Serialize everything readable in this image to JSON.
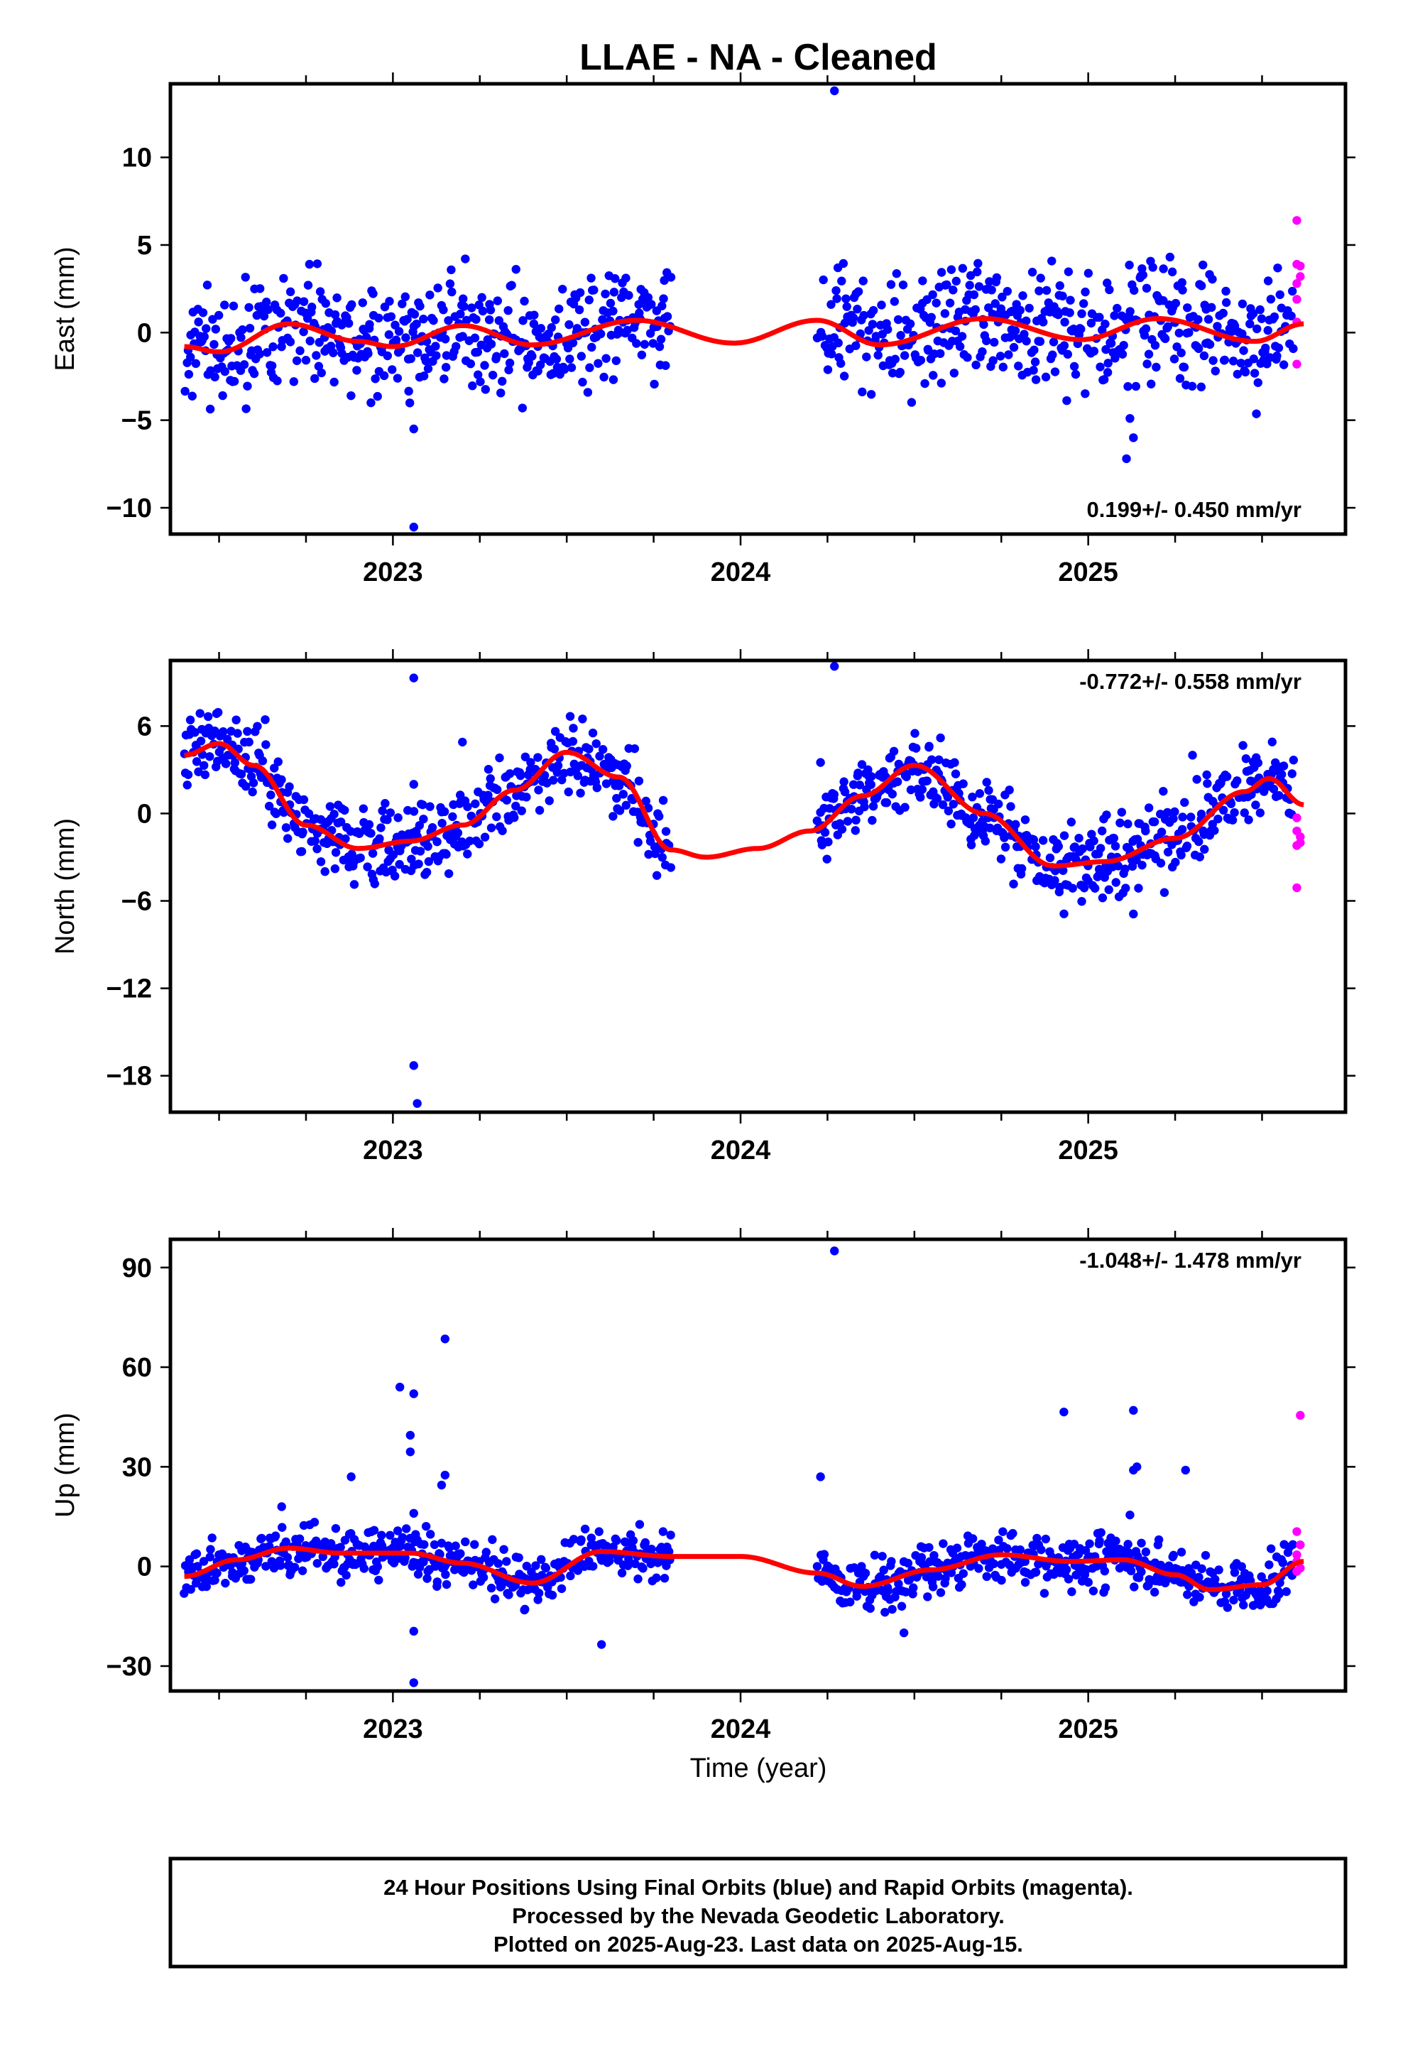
{
  "title": "LLAE  - NA - Cleaned",
  "colors": {
    "final": "#0000ff",
    "rapid": "#ff00ff",
    "fit": "#ff0000",
    "frame": "#000000"
  },
  "xlabel": "Time (year)",
  "footer": [
    "24 Hour Positions Using Final Orbits (blue) and Rapid Orbits (magenta).",
    "Processed by the Nevada Geodetic Laboratory.",
    "Plotted on 2025-Aug-23. Last data on 2025-Aug-15."
  ],
  "chart_data": [
    {
      "type": "scatter",
      "ylabel": "East (mm)",
      "rate_text": "0.199+/- 0.450 mm/yr",
      "rate_position": "bottom-right",
      "xlim": [
        2022.36,
        2025.74
      ],
      "ylim": [
        -11.5,
        14.2
      ],
      "yticks": [
        10,
        5,
        0,
        -5,
        -10
      ],
      "ytick_labels": [
        "10",
        "5",
        "0",
        "−5",
        "−10"
      ],
      "xticks": [
        2023,
        2024,
        2025
      ],
      "xtick_labels": [
        "2023",
        "2024",
        "2025"
      ],
      "gap": [
        2023.8,
        2024.22
      ],
      "fit": {
        "x": [
          2022.4,
          2022.5,
          2022.7,
          2022.9,
          2023.0,
          2023.2,
          2023.4,
          2023.7,
          2023.98,
          2024.22,
          2024.4,
          2024.7,
          2024.98,
          2025.2,
          2025.48,
          2025.62
        ],
        "y": [
          -0.8,
          -1.1,
          0.5,
          -0.5,
          -0.8,
          0.4,
          -0.7,
          0.7,
          -0.6,
          0.7,
          -0.7,
          0.8,
          -0.4,
          0.8,
          -0.5,
          0.5
        ]
      },
      "final_noise": 1.6,
      "outliers": [
        {
          "x": 2023.06,
          "y": -11.1
        },
        {
          "x": 2023.06,
          "y": -5.5
        },
        {
          "x": 2024.27,
          "y": 13.8
        },
        {
          "x": 2025.11,
          "y": -7.2
        },
        {
          "x": 2025.13,
          "y": -6.0
        },
        {
          "x": 2025.12,
          "y": -4.9
        },
        {
          "x": 2024.28,
          "y": 3.7
        },
        {
          "x": 2022.76,
          "y": 3.9
        }
      ],
      "rapid": [
        {
          "x": 2025.6,
          "y": 6.4
        },
        {
          "x": 2025.6,
          "y": 3.9
        },
        {
          "x": 2025.61,
          "y": 3.2
        },
        {
          "x": 2025.6,
          "y": 2.8
        },
        {
          "x": 2025.6,
          "y": 1.9
        },
        {
          "x": 2025.6,
          "y": 0.6
        },
        {
          "x": 2025.61,
          "y": 3.8
        },
        {
          "x": 2025.6,
          "y": -1.8
        }
      ]
    },
    {
      "type": "scatter",
      "ylabel": "North (mm)",
      "rate_text": "-0.772+/- 0.558 mm/yr",
      "rate_position": "top-right",
      "xlim": [
        2022.36,
        2025.74
      ],
      "ylim": [
        -20.5,
        10.5
      ],
      "yticks": [
        6,
        0,
        -6,
        -12,
        -18
      ],
      "ytick_labels": [
        "6",
        "0",
        "−6",
        "−12",
        "−18"
      ],
      "xticks": [
        2023,
        2024,
        2025
      ],
      "xtick_labels": [
        "2023",
        "2024",
        "2025"
      ],
      "gap": [
        2023.8,
        2024.22
      ],
      "fit": {
        "x": [
          2022.4,
          2022.5,
          2022.6,
          2022.75,
          2022.9,
          2023.05,
          2023.2,
          2023.35,
          2023.5,
          2023.65,
          2023.8,
          2023.9,
          2024.05,
          2024.2,
          2024.35,
          2024.5,
          2024.7,
          2024.9,
          2025.05,
          2025.25,
          2025.45,
          2025.52,
          2025.62
        ],
        "y": [
          4.0,
          4.8,
          3.3,
          -0.8,
          -2.4,
          -1.9,
          -0.8,
          1.6,
          4.2,
          2.5,
          -2.5,
          -3.0,
          -2.4,
          -1.2,
          1.2,
          3.3,
          0.0,
          -3.6,
          -3.3,
          -1.7,
          1.5,
          2.4,
          0.6
        ]
      },
      "final_noise": 1.3,
      "outliers": [
        {
          "x": 2023.06,
          "y": 9.3
        },
        {
          "x": 2023.06,
          "y": -17.3
        },
        {
          "x": 2023.07,
          "y": -19.9
        },
        {
          "x": 2024.27,
          "y": 10.1
        },
        {
          "x": 2023.06,
          "y": 2.0
        },
        {
          "x": 2025.13,
          "y": -6.9
        },
        {
          "x": 2025.3,
          "y": 4.0
        },
        {
          "x": 2023.2,
          "y": 4.9
        },
        {
          "x": 2024.23,
          "y": 3.5
        }
      ],
      "rapid": [
        {
          "x": 2025.6,
          "y": -0.3
        },
        {
          "x": 2025.6,
          "y": -1.2
        },
        {
          "x": 2025.61,
          "y": -1.6
        },
        {
          "x": 2025.6,
          "y": -2.2
        },
        {
          "x": 2025.61,
          "y": -2.0
        },
        {
          "x": 2025.6,
          "y": -5.1
        }
      ]
    },
    {
      "type": "scatter",
      "ylabel": "Up (mm)",
      "rate_text": "-1.048+/- 1.478 mm/yr",
      "rate_position": "top-right",
      "xlim": [
        2022.36,
        2025.74
      ],
      "ylim": [
        -37.5,
        98.5
      ],
      "yticks": [
        90,
        60,
        30,
        0,
        -30
      ],
      "ytick_labels": [
        "90",
        "60",
        "30",
        "0",
        "−30"
      ],
      "xticks": [
        2023,
        2024,
        2025
      ],
      "xtick_labels": [
        "2023",
        "2024",
        "2025"
      ],
      "gap": [
        2023.8,
        2024.22
      ],
      "fit": {
        "x": [
          2022.4,
          2022.55,
          2022.7,
          2022.85,
          2023.05,
          2023.2,
          2023.4,
          2023.6,
          2023.8,
          2024.0,
          2024.22,
          2024.35,
          2024.55,
          2024.75,
          2024.95,
          2025.1,
          2025.25,
          2025.35,
          2025.5,
          2025.62
        ],
        "y": [
          -3.0,
          2.0,
          5.5,
          4.0,
          4.0,
          1.0,
          -5.0,
          4.5,
          3.0,
          3.0,
          -2.0,
          -6.0,
          -1.0,
          3.5,
          1.5,
          2.0,
          -2.5,
          -7.0,
          -5.5,
          1.5
        ]
      },
      "final_noise": 3.8,
      "outliers": [
        {
          "x": 2023.02,
          "y": 54.0
        },
        {
          "x": 2023.06,
          "y": 52.0
        },
        {
          "x": 2023.15,
          "y": 68.5
        },
        {
          "x": 2023.05,
          "y": 39.5
        },
        {
          "x": 2023.05,
          "y": 34.5
        },
        {
          "x": 2023.15,
          "y": 27.5
        },
        {
          "x": 2023.14,
          "y": 24.5
        },
        {
          "x": 2022.88,
          "y": 27.0
        },
        {
          "x": 2023.06,
          "y": 16.0
        },
        {
          "x": 2023.06,
          "y": -19.5
        },
        {
          "x": 2023.06,
          "y": -35.0
        },
        {
          "x": 2023.6,
          "y": -23.5
        },
        {
          "x": 2024.23,
          "y": 27.0
        },
        {
          "x": 2024.27,
          "y": 95.0
        },
        {
          "x": 2024.93,
          "y": 46.5
        },
        {
          "x": 2025.13,
          "y": 47.0
        },
        {
          "x": 2025.14,
          "y": 30.0
        },
        {
          "x": 2025.13,
          "y": 29.0
        },
        {
          "x": 2025.28,
          "y": 29.0
        },
        {
          "x": 2025.12,
          "y": 15.5
        },
        {
          "x": 2024.47,
          "y": -20.0
        },
        {
          "x": 2022.68,
          "y": 18.0
        }
      ],
      "rapid": [
        {
          "x": 2025.61,
          "y": 45.5
        },
        {
          "x": 2025.6,
          "y": 10.5
        },
        {
          "x": 2025.61,
          "y": 6.5
        },
        {
          "x": 2025.6,
          "y": 3.5
        },
        {
          "x": 2025.61,
          "y": -0.5
        },
        {
          "x": 2025.6,
          "y": -1.5
        },
        {
          "x": 2025.6,
          "y": 1.5
        }
      ]
    }
  ]
}
